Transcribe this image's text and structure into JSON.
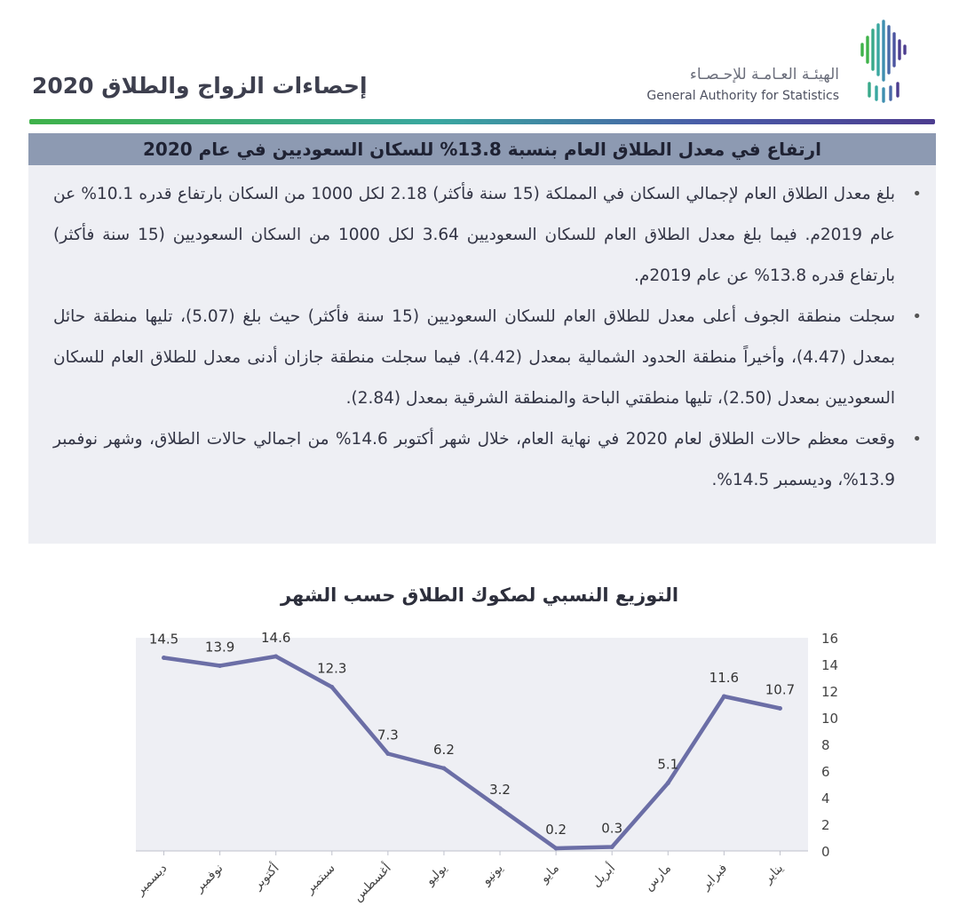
{
  "header": {
    "title": "إحصاءات الزواج والطلاق 2020",
    "logo_ar": "الهيئـة العـامـة للإحـصـاء",
    "logo_en": "General Authority for Statistics"
  },
  "panel": {
    "heading": "ارتفاع في معدل الطلاق العام بنسبة 13.8% للسكان السعوديين في عام 2020",
    "bullets": [
      "بلغ معدل الطلاق العام لإجمالي السكان في المملكة (15 سنة فأكثر) 2.18 لكل 1000 من السكان بارتفاع قدره 10.1% عن عام 2019م. فيما بلغ معدل الطلاق العام للسكان السعوديين 3.64 لكل 1000 من السكان السعوديين (15 سنة فأكثر) بارتفاع قدره 13.8% عن عام 2019م.",
      "سجلت منطقة الجوف أعلى معدل للطلاق العام للسكان السعوديين (15 سنة فأكثر) حيث بلغ (5.07)، تليها منطقة حائل بمعدل (4.47)، وأخيراً منطقة الحدود الشمالية بمعدل (4.42). فيما سجلت منطقة جازان أدنى معدل للطلاق العام للسكان السعوديين بمعدل (2.50)، تليها منطقتي الباحة والمنطقة الشرقية بمعدل (2.84).",
      "وقعت معظم حالات الطلاق لعام 2020 في نهاية العام، خلال شهر أكتوبر 14.6% من اجمالي حالات الطلاق، وشهر نوفمبر 13.9%، وديسمبر 14.5%."
    ]
  },
  "colors": {
    "line": "#6b6ea6",
    "plot_bg": "#eeeff4",
    "heading_bg": "#8d9ab2"
  },
  "chart_data": {
    "type": "line",
    "title": "التوزيع النسبي لصكوك الطلاق حسب الشهر",
    "categories": [
      "ديسمبر",
      "نوفمبر",
      "أكتوبر",
      "سبتمبر",
      "أغسطس",
      "يوليو",
      "يونيو",
      "مايو",
      "أبريل",
      "مارس",
      "فبراير",
      "يناير"
    ],
    "values": [
      14.5,
      13.9,
      14.6,
      12.3,
      7.3,
      6.2,
      3.2,
      0.2,
      0.3,
      5.1,
      11.6,
      10.7
    ],
    "value_labels": [
      "14.5",
      "13.9",
      "14.6",
      "12.3",
      "7.3",
      "6.2",
      "3.2",
      "0.2",
      "0.3",
      "5.1",
      "11.6",
      "10.7"
    ],
    "y_ticks": [
      "0",
      "2",
      "4",
      "6",
      "8",
      "10",
      "12",
      "14",
      "16"
    ],
    "ylim": [
      0,
      16
    ],
    "y_axis_side": "right",
    "grid": false,
    "legend": "none"
  }
}
